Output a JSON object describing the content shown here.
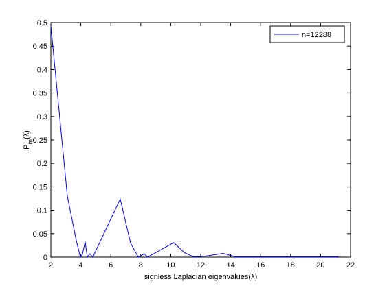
{
  "chart_data": {
    "type": "line",
    "xlabel": "signless Laplacian eigenvalues(λ)",
    "ylabel": [
      "P",
      "m",
      "(λ)"
    ],
    "x": [
      2,
      3.1,
      3.7,
      3.97,
      4.1,
      4.29,
      4.43,
      4.6,
      4.8,
      6.63,
      7.32,
      7.83,
      8.24,
      8.45,
      10.2,
      10.9,
      11.5,
      12.3,
      13.5,
      14.3,
      16,
      18,
      20,
      21.2
    ],
    "series": [
      {
        "name": "n=12288",
        "color": "#0000ff",
        "values": [
          0.493,
          0.13,
          0.035,
          0.0,
          0.005,
          0.033,
          0.0,
          0.007,
          0.0,
          0.124,
          0.03,
          0.0,
          0.007,
          0.0,
          0.031,
          0.01,
          0.001,
          0.002,
          0.008,
          0.001,
          0.001,
          0.001,
          0.001,
          0.001
        ]
      }
    ],
    "xlim": [
      2,
      22
    ],
    "xticks": [
      2,
      4,
      6,
      8,
      10,
      12,
      14,
      16,
      18,
      20,
      22
    ],
    "ylim": [
      0,
      0.5
    ],
    "yticks": [
      0,
      0.05,
      0.1,
      0.15,
      0.2,
      0.25,
      0.3,
      0.35,
      0.4,
      0.45,
      0.5
    ],
    "legend": "upper right"
  }
}
